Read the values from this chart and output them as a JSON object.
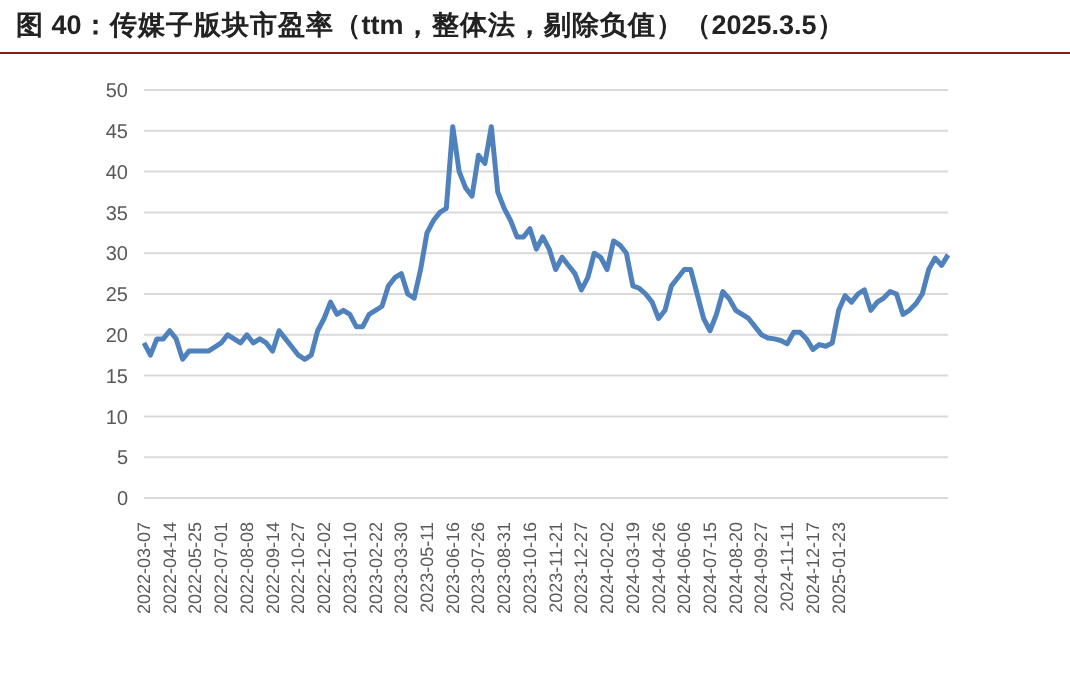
{
  "chart_data": {
    "type": "line",
    "title": "图 40：传媒子版块市盈率（ttm，整体法，剔除负值）（2025.3.5）",
    "categories": [
      "2022-03-07",
      null,
      null,
      null,
      "2022-04-14",
      null,
      null,
      null,
      "2022-05-25",
      null,
      null,
      null,
      "2022-07-01",
      null,
      null,
      null,
      "2022-08-08",
      null,
      null,
      null,
      "2022-09-14",
      null,
      null,
      null,
      "2022-10-27",
      null,
      null,
      null,
      "2022-12-02",
      null,
      null,
      null,
      "2023-01-10",
      null,
      null,
      null,
      "2023-02-22",
      null,
      null,
      null,
      "2023-03-30",
      null,
      null,
      null,
      "2023-05-11",
      null,
      null,
      null,
      "2023-06-16",
      null,
      null,
      null,
      "2023-07-26",
      null,
      null,
      null,
      "2023-08-31",
      null,
      null,
      null,
      "2023-10-16",
      null,
      null,
      null,
      "2023-11-21",
      null,
      null,
      null,
      "2023-12-27",
      null,
      null,
      null,
      "2024-02-02",
      null,
      null,
      null,
      "2024-03-19",
      null,
      null,
      null,
      "2024-04-26",
      null,
      null,
      null,
      "2024-06-06",
      null,
      null,
      null,
      "2024-07-15",
      null,
      null,
      null,
      "2024-08-20",
      null,
      null,
      null,
      "2024-09-27",
      null,
      null,
      null,
      "2024-11-11",
      null,
      null,
      null,
      "2024-12-17",
      null,
      null,
      null,
      "2025-01-23",
      null,
      null,
      null,
      null,
      null,
      null,
      null,
      null,
      null,
      null,
      null,
      null,
      null,
      null,
      null,
      null,
      null
    ],
    "series": [
      {
        "color": "#4f81bd",
        "values": [
          19,
          17.5,
          19.5,
          19.5,
          20.5,
          19.5,
          17,
          18,
          18,
          18,
          18,
          18.5,
          19,
          20,
          19.5,
          19,
          20,
          19,
          19.5,
          19,
          18,
          20.5,
          19.5,
          18.5,
          17.5,
          17,
          17.5,
          20.5,
          22,
          24,
          22.5,
          23,
          22.5,
          21,
          21,
          22.5,
          23,
          23.5,
          26,
          27,
          27.5,
          25,
          24.5,
          28,
          32.5,
          34,
          35,
          35.5,
          45.5,
          40,
          38,
          37,
          42,
          41,
          45.5,
          37.5,
          35.5,
          34,
          32,
          32,
          33,
          30.5,
          32,
          30.5,
          28,
          29.5,
          28.5,
          27.5,
          25.5,
          27,
          30,
          29.5,
          28,
          31.5,
          31,
          30,
          26,
          25.7,
          25,
          24,
          22,
          23,
          26,
          27,
          28,
          28,
          25,
          22,
          20.5,
          22.5,
          25.3,
          24.4,
          23,
          22.5,
          22,
          21,
          20,
          19.6,
          19.5,
          19.3,
          18.9,
          20.3,
          20.3,
          19.5,
          18.2,
          18.8,
          18.6,
          19,
          23,
          24.8,
          24,
          25,
          25.5,
          23,
          24,
          24.5,
          25.3,
          25,
          22.5,
          23,
          23.8,
          25,
          28,
          29.4,
          28.5,
          29.8
        ]
      }
    ],
    "ylim": [
      0,
      50
    ],
    "yticks": [
      0,
      5,
      10,
      15,
      20,
      25,
      30,
      35,
      40,
      45,
      50
    ],
    "grid": "y",
    "legend": false,
    "marker": "none",
    "line_style": "solid"
  }
}
